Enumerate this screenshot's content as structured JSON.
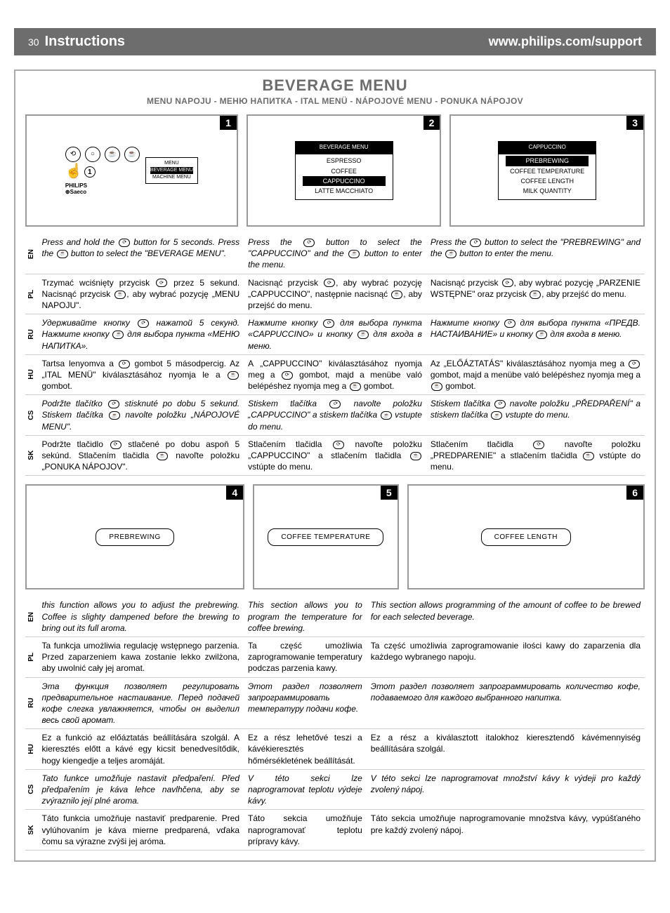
{
  "header": {
    "page_num": "30",
    "instructions": "Instructions",
    "url": "www.philips.com/support"
  },
  "section": {
    "title": "BEVERAGE MENU",
    "subtitle": "MENU NAPOJU - МЕНЮ НАПИТКА - ITAL MENÜ - NÁPOJOVÉ MENU - PONUKA NÁPOJOV"
  },
  "panels_top": {
    "p1": {
      "num": "1",
      "machine_screen": {
        "l1": "MENU",
        "l2": "BEVERAGE MENU",
        "l3": "MACHINE MENU"
      },
      "hand_num": "1"
    },
    "p2": {
      "num": "2",
      "screen": {
        "title": "BEVERAGE MENU",
        "l1": "ESPRESSO",
        "l2": "COFFEE",
        "l3": "CAPPUCCINO",
        "l4": "LATTE MACCHIATO"
      }
    },
    "p3": {
      "num": "3",
      "screen": {
        "title": "CAPPUCCINO",
        "l1": "PREBREWING",
        "l2": "COFFEE TEMPERATURE",
        "l3": "COFFEE LENGTH",
        "l4": "MILK QUANTITY"
      }
    }
  },
  "table1": {
    "rows": [
      {
        "lang": "EN",
        "c1": "Press and hold the ⟳ button for 5 seconds. Press the ☕ button to select the \"BEVERAGE MENU\".",
        "c2": "Press the ⟳ button to select the \"CAPPUCCINO\" and the ☕ button to enter the menu.",
        "c3": "Press the ⟳ button to select the \"PREBREWING\" and the ☕ button to enter the menu.",
        "italic": true
      },
      {
        "lang": "PL",
        "c1": "Trzymać wciśnięty przycisk ⟳ przez 5 sekund. Nacisnąć przycisk ☕, aby wybrać pozycję „MENU NAPOJU\".",
        "c2": "Nacisnąć przycisk ⟳, aby wybrać pozycję „CAPPUCCINO\", następnie nacisnąć ☕, aby przejść do menu.",
        "c3": "Nacisnąć przycisk ⟳, aby wybrać pozycję „PARZENIE WSTĘPNE\" oraz przycisk ☕, aby przejść do menu."
      },
      {
        "lang": "RU",
        "c1": "Удерживайте кнопку ⟳ нажатой 5 секунд. Нажмите кнопку ☕ для выбора пункта «МЕНЮ НАПИТКА».",
        "c2": "Нажмите кнопку ⟳ для выбора пункта «CAPPUCCINO» и кнопку ☕ для входа в меню.",
        "c3": "Нажмите кнопку ⟳ для выбора пункта «ПРЕДВ. НАСТАИВАНИЕ» и кнопку ☕ для входа в меню.",
        "italic": true
      },
      {
        "lang": "HU",
        "c1": "Tartsa lenyomva a ⟳ gombot 5 másodpercig. Az „ITAL MENÜ\" kiválasztásához nyomja le a ☕ gombot.",
        "c2": "A „CAPPUCCINO\" kiválasztásához nyomja meg a ⟳ gombot, majd a menübe való belépéshez nyomja meg a ☕ gombot.",
        "c3": "Az „ELŐÁZTATÁS\" kiválasztásához nyomja meg a ⟳ gombot, majd a menübe való belépéshez nyomja meg a ☕ gombot."
      },
      {
        "lang": "CS",
        "c1": "Podržte tlačítko ⟳ stisknuté po dobu 5 sekund. Stiskem tlačítka ☕ navolte položku „NÁPOJOVÉ MENU\".",
        "c2": "Stiskem tlačítka ⟳ navolte položku „CAPPUCCINO\" a stiskem tlačítka ☕ vstupte do menu.",
        "c3": "Stiskem tlačítka ⟳ navolte položku „PŘEDPAŘENÍ\" a stiskem tlačítka ☕ vstupte do menu.",
        "italic": true
      },
      {
        "lang": "SK",
        "c1": "Podržte tlačidlo ⟳ stlačené po dobu aspoň 5 sekúnd. Stlačením tlačidla ☕ navoľte položku „PONUKA NÁPOJOV\".",
        "c2": "Stlačením tlačidla ⟳ navoľte položku „CAPPUCCINO\" a stlačením tlačidla ☕ vstúpte do menu.",
        "c3": "Stlačením tlačidla ⟳ navoľte položku „PREDPARENIE\" a stlačením tlačidla ☕ vstúpte do menu."
      }
    ]
  },
  "panels_bot": {
    "p4": {
      "num": "4",
      "label": "PREBREWING"
    },
    "p5": {
      "num": "5",
      "label": "COFFEE TEMPERATURE"
    },
    "p6": {
      "num": "6",
      "label": "COFFEE LENGTH"
    }
  },
  "table2": {
    "rows": [
      {
        "lang": "EN",
        "c1": "this function allows you to adjust the prebrewing. Coffee is slighty dampened before the brewing to bring out its full aroma.",
        "c2": "This section allows you to program the temperature for coffee brewing.",
        "c3": "This section allows programming of the amount of coffee to be brewed for each selected beverage.",
        "italic": true
      },
      {
        "lang": "PL",
        "c1": "Ta funkcja umożliwia regulację wstępnego parzenia. Przed zaparzeniem kawa zostanie lekko zwilżona, aby uwolnić cały jej aromat.",
        "c2": "Ta część umożliwia zaprogramowanie temperatury podczas parzenia kawy.",
        "c3": "Ta część umożliwia zaprogramowanie ilości kawy do zaparzenia dla każdego wybranego napoju."
      },
      {
        "lang": "RU",
        "c1": "Эта функция позволяет регулировать предварительное настаивание. Перед подачей кофе слегка увлажняется, чтобы он выделил весь свой аромат.",
        "c2": "Этот раздел позволяет запрограммировать температуру подачи кофе.",
        "c3": "Этот раздел позволяет запрограммировать количество кофе, подаваемого для каждого выбранного напитка.",
        "italic": true
      },
      {
        "lang": "HU",
        "c1": "Ez a funkció az előáztatás beállítására szolgál. A kieresztés előtt a kávé egy kicsit benedvesítődik, hogy kiengedje a teljes aromáját.",
        "c2": "Ez a rész lehetővé teszi a kávékieresztés hőmérsékletének beállítását.",
        "c3": "Ez a rész a kiválasztott italokhoz kieresztendő kávémennyiség beállítására szolgál."
      },
      {
        "lang": "CS",
        "c1": "Tato funkce umožňuje nastavit předpaření. Před předpařením je káva lehce navlhčena, aby se zvýraznilo její plné aroma.",
        "c2": "V této sekci lze naprogramovat teplotu výdeje kávy.",
        "c3": "V této sekci lze naprogramovat množství kávy k výdeji pro každý zvolený nápoj.",
        "italic": true
      },
      {
        "lang": "SK",
        "c1": "Táto funkcia umožňuje nastaviť predparenie. Pred vylúhovaním je káva mierne predparená, vďaka čomu sa výrazne zvýši jej aróma.",
        "c2": "Táto sekcia umožňuje naprogramovať teplotu prípravy kávy.",
        "c3": "Táto sekcia umožňuje naprogramovanie množstva kávy, vypúšťaného pre každý zvolený nápoj."
      }
    ]
  }
}
